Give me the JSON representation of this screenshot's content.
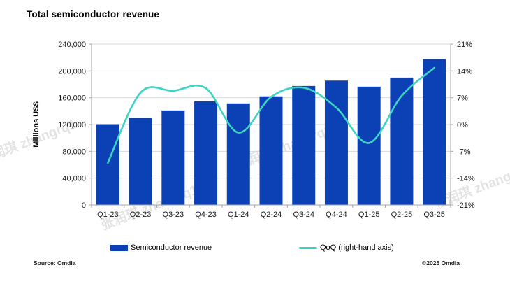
{
  "header": {
    "title": "Total semiconductor revenue"
  },
  "chart_data": {
    "type": "bar",
    "subtype": "bar-with-line-overlay",
    "title": "Total semiconductor revenue",
    "categories": [
      "Q1-23",
      "Q2-23",
      "Q3-23",
      "Q4-23",
      "Q1-24",
      "Q2-24",
      "Q3-24",
      "Q4-24",
      "Q1-25",
      "Q2-25",
      "Q3-25"
    ],
    "series": [
      {
        "name": "Semiconductor revenue",
        "type": "bar",
        "axis": "left",
        "values": [
          120500,
          130000,
          141000,
          154500,
          151500,
          162000,
          177500,
          185500,
          176500,
          190000,
          217500
        ]
      },
      {
        "name": "QoQ (right-hand axis)",
        "type": "line",
        "axis": "right",
        "values": [
          -10,
          8.3,
          8.8,
          9.5,
          -2.1,
          7.2,
          9.6,
          4.4,
          -4.8,
          7.5,
          14.8
        ]
      }
    ],
    "left_axis": {
      "label": "Millions US$",
      "min": 0,
      "max": 240000,
      "step": 40000,
      "tick_format": "comma"
    },
    "right_axis": {
      "min": -21,
      "max": 21,
      "step": 7,
      "tick_suffix": "%"
    },
    "grid": "horizontal",
    "legend_position": "bottom"
  },
  "legend": {
    "items": [
      {
        "label": "Semiconductor revenue",
        "swatch": "rect"
      },
      {
        "label": "QoQ (right-hand axis)",
        "swatch": "line"
      }
    ]
  },
  "footer": {
    "source": "Source: Omdia",
    "copyright": "©2025 Omdia"
  },
  "watermark": {
    "text": "张润琪 zhangrq1"
  },
  "colors": {
    "bar": "#0b41b4",
    "line": "#3ed4c4",
    "grid": "#d9d9d9",
    "axis": "#a6a6a6",
    "text": "#1a1a1a"
  }
}
